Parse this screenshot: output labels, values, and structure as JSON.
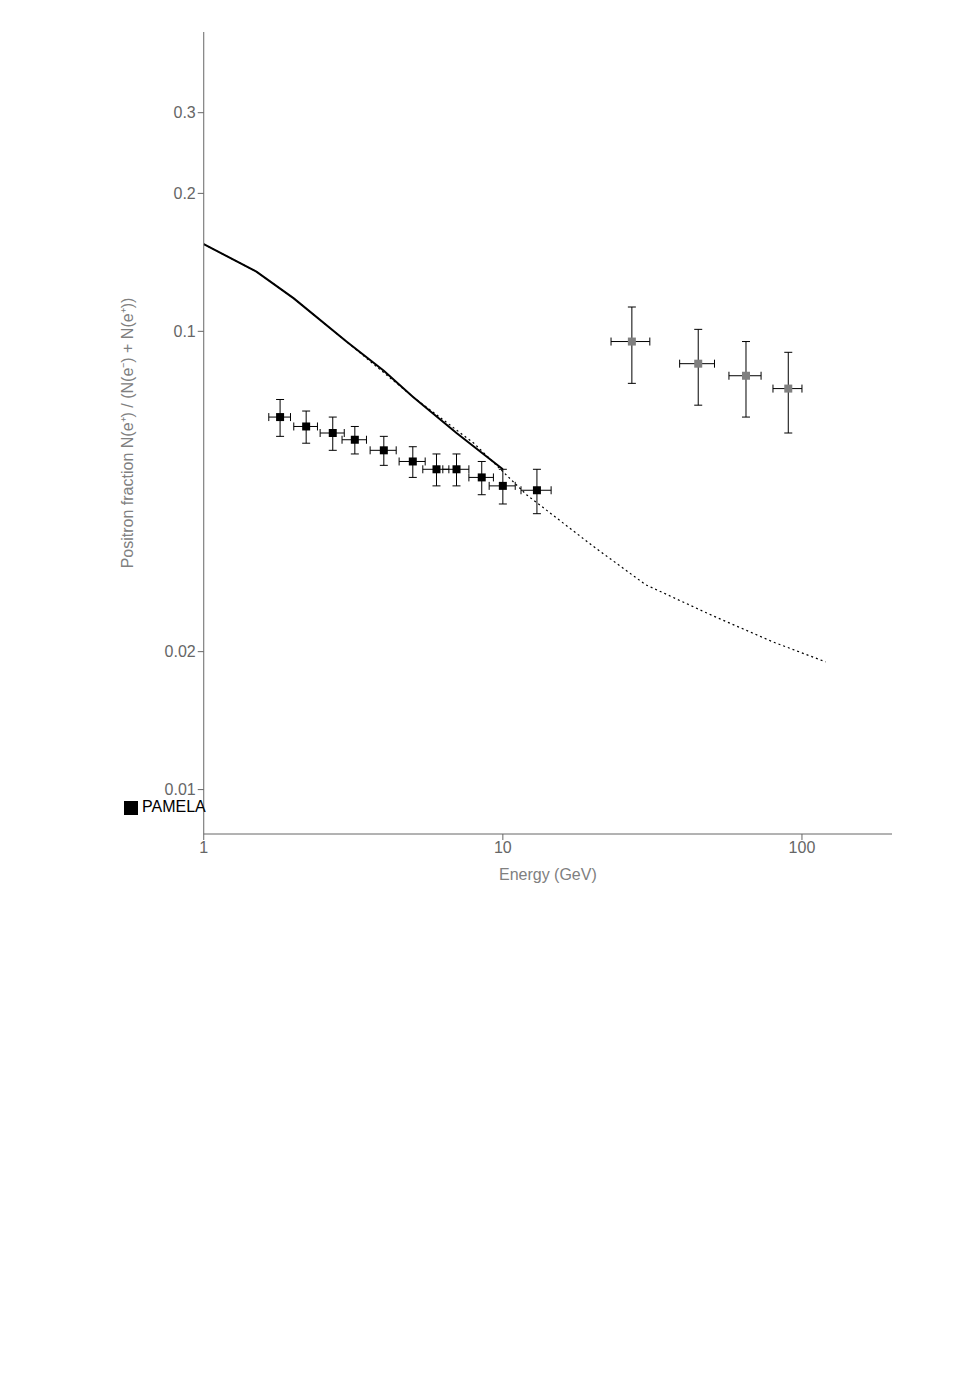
{
  "chart_data": {
    "type": "line",
    "xlabel": "Energy (GeV)",
    "ylabel": "Positron fraction   N(e⁺) / (N(e⁻) + N(e⁺))",
    "log": true,
    "grid": false,
    "legend": "lower left",
    "xlim": [
      1,
      200
    ],
    "ylim": [
      0.008,
      0.45
    ],
    "xticks": [
      1,
      10,
      100
    ],
    "yticks": [
      0.01,
      0.02,
      0.1,
      0.2,
      0.3
    ],
    "series": [
      {
        "type": "line",
        "line_style": "solid",
        "color": "#000000",
        "x": [
          1.0,
          1.5,
          2.0,
          3.0,
          4.0,
          5.0,
          7.0,
          10.0
        ],
        "values": [
          0.155,
          0.135,
          0.118,
          0.095,
          0.082,
          0.072,
          0.06,
          0.05
        ]
      },
      {
        "type": "line",
        "line_style": "dotted",
        "color": "#000000",
        "x": [
          1.0,
          1.5,
          2.0,
          3.0,
          5.0,
          8.0,
          12.0,
          20.0,
          30.0,
          50.0,
          80.0,
          120.0
        ],
        "values": [
          0.155,
          0.135,
          0.118,
          0.095,
          0.072,
          0.057,
          0.044,
          0.034,
          0.028,
          0.024,
          0.021,
          0.019
        ]
      },
      {
        "name": "PAMELA",
        "type": "scatter",
        "marker": "square",
        "color": "#000000",
        "x": [
          1.8,
          2.2,
          2.7,
          3.2,
          4.0,
          5.0,
          6.0,
          7.0,
          8.5,
          10.0,
          13.0
        ],
        "values": [
          0.065,
          0.062,
          0.06,
          0.058,
          0.055,
          0.052,
          0.05,
          0.05,
          0.048,
          0.046,
          0.045
        ],
        "errors_x": [
          0.15,
          0.2,
          0.25,
          0.3,
          0.4,
          0.5,
          0.6,
          0.7,
          0.8,
          1.0,
          1.5
        ],
        "errors_y": [
          0.006,
          0.005,
          0.005,
          0.004,
          0.004,
          0.004,
          0.004,
          0.004,
          0.004,
          0.004,
          0.005
        ]
      },
      {
        "type": "scatter",
        "marker": "square",
        "color": "gray",
        "x": [
          27.0,
          45.0,
          65.0,
          90.0
        ],
        "values": [
          0.095,
          0.085,
          0.08,
          0.075
        ],
        "errors_x": [
          4.0,
          6.0,
          8.0,
          10.0
        ],
        "errors_y": [
          0.018,
          0.016,
          0.015,
          0.015
        ]
      }
    ]
  }
}
